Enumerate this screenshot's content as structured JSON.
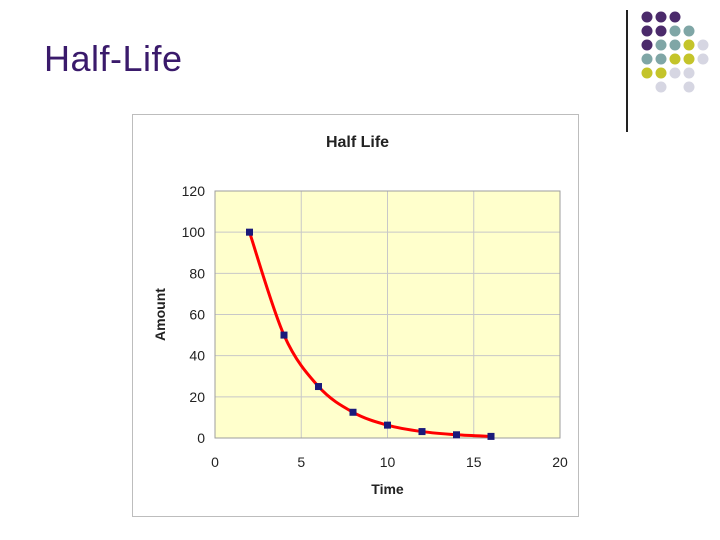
{
  "slide": {
    "title": "Half-Life"
  },
  "decor": {
    "dot_colors": [
      "#4b2a6b",
      "#7fa6a6",
      "#c4c42a",
      "#d6d6e2"
    ]
  },
  "chart_data": {
    "type": "scatter",
    "title": "Half Life",
    "xlabel": "Time",
    "ylabel": "Amount",
    "xlim": [
      0,
      20
    ],
    "ylim": [
      0,
      120
    ],
    "xticks": [
      0,
      5,
      10,
      15,
      20
    ],
    "yticks": [
      0,
      20,
      40,
      60,
      80,
      100,
      120
    ],
    "grid": true,
    "plot_background": "#ffffcc",
    "marker_color": "#1a1a7a",
    "line_color": "#ff0000",
    "series": [
      {
        "x": [
          2,
          4,
          6,
          8,
          10,
          12,
          14,
          16
        ],
        "y": [
          100,
          50,
          25,
          12.5,
          6.25,
          3.125,
          1.5625,
          0.78125
        ]
      }
    ]
  }
}
